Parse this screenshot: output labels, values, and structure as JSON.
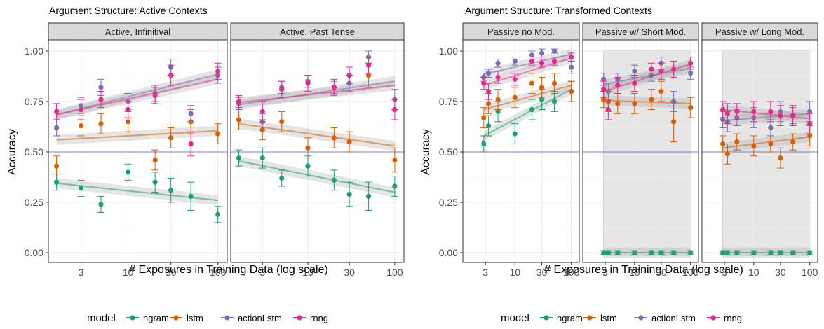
{
  "figure": {
    "left_title": "Argument Structure: Active Contexts",
    "right_title": "Argument Structure: Transformed Contexts",
    "ylabel": "Accuracy",
    "xlabel": "# Exposures in Training Data (log scale)",
    "legend_title": "model"
  },
  "colors": {
    "ngram": "#1b9e77",
    "lstm": "#d95f02",
    "actionLstm": "#7570b3",
    "rnng": "#e7298a",
    "ref_line": "#7b7fd6",
    "strip": "#d9d9d9"
  },
  "chart_data": [
    {
      "type": "scatter",
      "facet": "Active, Infinitival",
      "x_scale": "log",
      "ylim": [
        0,
        1
      ],
      "y_ticks": [
        "0.00",
        "0.25",
        "0.50",
        "0.75",
        "1.00"
      ],
      "x_ticks": [
        "3",
        "10",
        "30",
        "100"
      ],
      "reference_y": 0.5,
      "series": [
        {
          "name": "ngram",
          "x": [
            1.6,
            3,
            5,
            10,
            20,
            30,
            50,
            100
          ],
          "y": [
            0.35,
            0.32,
            0.24,
            0.4,
            0.35,
            0.31,
            0.28,
            0.19
          ],
          "err": [
            0.04,
            0.04,
            0.04,
            0.04,
            0.05,
            0.06,
            0.07,
            0.04
          ],
          "fit": [
            0.345,
            0.26
          ]
        },
        {
          "name": "lstm",
          "x": [
            1.6,
            3,
            5,
            10,
            20,
            30,
            50,
            100
          ],
          "y": [
            0.43,
            0.63,
            0.64,
            0.65,
            0.46,
            0.57,
            0.65,
            0.59
          ],
          "err": [
            0.05,
            0.05,
            0.05,
            0.05,
            0.05,
            0.05,
            0.06,
            0.05
          ],
          "fit": [
            0.56,
            0.605
          ]
        },
        {
          "name": "actionLstm",
          "x": [
            1.6,
            3,
            5,
            10,
            20,
            30,
            50,
            100
          ],
          "y": [
            0.62,
            0.73,
            0.82,
            0.75,
            0.79,
            0.92,
            0.69,
            0.88
          ],
          "err": [
            0.04,
            0.04,
            0.04,
            0.04,
            0.04,
            0.04,
            0.04,
            0.04
          ],
          "fit": [
            0.685,
            0.885
          ]
        },
        {
          "name": "rnng",
          "x": [
            1.6,
            3,
            5,
            10,
            20,
            30,
            50,
            100
          ],
          "y": [
            0.7,
            0.71,
            0.76,
            0.71,
            0.78,
            0.88,
            0.54,
            0.9
          ],
          "err": [
            0.04,
            0.05,
            0.04,
            0.04,
            0.04,
            0.05,
            0.06,
            0.04
          ],
          "fit": [
            0.685,
            0.86
          ]
        }
      ]
    },
    {
      "type": "scatter",
      "facet": "Active, Past Tense",
      "x_scale": "log",
      "ylim": [
        0,
        1
      ],
      "x_ticks": [
        "3",
        "10",
        "30",
        "100"
      ],
      "reference_y": 0.5,
      "series": [
        {
          "name": "ngram",
          "x": [
            1.6,
            3,
            5,
            10,
            20,
            30,
            50,
            100
          ],
          "y": [
            0.47,
            0.47,
            0.37,
            0.43,
            0.36,
            0.29,
            0.28,
            0.33
          ],
          "err": [
            0.04,
            0.05,
            0.04,
            0.05,
            0.05,
            0.06,
            0.07,
            0.05
          ],
          "fit": [
            0.455,
            0.3
          ]
        },
        {
          "name": "lstm",
          "x": [
            1.6,
            3,
            5,
            10,
            20,
            30,
            50,
            100
          ],
          "y": [
            0.66,
            0.61,
            0.65,
            0.52,
            0.57,
            0.55,
            0.88,
            0.46
          ],
          "err": [
            0.05,
            0.05,
            0.05,
            0.05,
            0.05,
            0.05,
            0.06,
            0.06
          ],
          "fit": [
            0.64,
            0.53
          ]
        },
        {
          "name": "actionLstm",
          "x": [
            1.6,
            3,
            5,
            10,
            20,
            30,
            50,
            100
          ],
          "y": [
            0.74,
            0.65,
            0.82,
            0.85,
            0.82,
            0.84,
            0.97,
            0.76
          ],
          "err": [
            0.03,
            0.04,
            0.03,
            0.03,
            0.03,
            0.04,
            0.03,
            0.05
          ],
          "fit": [
            0.735,
            0.85
          ]
        },
        {
          "name": "rnng",
          "x": [
            1.6,
            3,
            5,
            10,
            20,
            30,
            50,
            100
          ],
          "y": [
            0.75,
            0.7,
            0.81,
            0.84,
            0.82,
            0.88,
            0.93,
            0.71
          ],
          "err": [
            0.03,
            0.05,
            0.04,
            0.04,
            0.04,
            0.04,
            0.04,
            0.05
          ],
          "fit": [
            0.745,
            0.83
          ]
        }
      ]
    },
    {
      "type": "scatter",
      "facet": "Passive no Mod.",
      "x_scale": "log",
      "ylim": [
        0,
        1
      ],
      "y_ticks": [
        "0.00",
        "0.25",
        "0.50",
        "0.75",
        "1.00"
      ],
      "x_ticks": [
        "3",
        "10",
        "30",
        "100"
      ],
      "reference_y": 0.5,
      "series": [
        {
          "name": "ngram",
          "x": [
            2.8,
            3.4,
            5,
            10,
            20,
            30,
            50,
            100
          ],
          "y": [
            0.54,
            0.63,
            0.7,
            0.59,
            0.71,
            0.76,
            0.75,
            0.8
          ],
          "err": [
            0.04,
            0.05,
            0.05,
            0.05,
            0.05,
            0.05,
            0.05,
            0.05
          ],
          "fit": [
            0.58,
            0.81
          ]
        },
        {
          "name": "lstm",
          "x": [
            2.8,
            3.4,
            5,
            10,
            20,
            30,
            50,
            100
          ],
          "y": [
            0.67,
            0.74,
            0.76,
            0.77,
            0.84,
            0.82,
            0.84,
            0.8
          ],
          "err": [
            0.05,
            0.05,
            0.05,
            0.05,
            0.05,
            0.05,
            0.05,
            0.05
          ],
          "fit": [
            0.71,
            0.83
          ]
        },
        {
          "name": "actionLstm",
          "x": [
            2.8,
            3.4,
            5,
            10,
            20,
            30,
            50,
            100
          ],
          "y": [
            0.87,
            0.89,
            0.94,
            0.95,
            0.98,
            0.99,
            1.0,
            0.92
          ],
          "err": [
            0.02,
            0.02,
            0.02,
            0.02,
            0.02,
            0.02,
            0.01,
            0.03
          ],
          "fit": [
            0.885,
            0.985
          ]
        },
        {
          "name": "rnng",
          "x": [
            2.8,
            3.4,
            5,
            10,
            20,
            30,
            50,
            100
          ],
          "y": [
            0.84,
            0.8,
            0.87,
            0.86,
            0.95,
            0.94,
            0.95,
            0.97
          ],
          "err": [
            0.03,
            0.04,
            0.03,
            0.03,
            0.02,
            0.02,
            0.02,
            0.02
          ],
          "fit": [
            0.83,
            0.965
          ]
        }
      ]
    },
    {
      "type": "scatter",
      "facet": "Passive w/ Short Mod.",
      "x_scale": "log",
      "ylim": [
        0,
        1
      ],
      "x_ticks": [
        "3",
        "10",
        "30",
        "100"
      ],
      "reference_y": 0.5,
      "shaded": true,
      "series": [
        {
          "name": "ngram",
          "x": [
            2.8,
            3.4,
            5,
            10,
            20,
            30,
            50,
            100
          ],
          "y": [
            0,
            0,
            0,
            0,
            0,
            0,
            0,
            0
          ],
          "err": [
            0.01,
            0.01,
            0.01,
            0.01,
            0.01,
            0.01,
            0.01,
            0.01
          ],
          "fit": [
            0,
            0
          ]
        },
        {
          "name": "lstm",
          "x": [
            2.8,
            3.4,
            5,
            10,
            20,
            30,
            50,
            100
          ],
          "y": [
            0.76,
            0.75,
            0.74,
            0.74,
            0.76,
            0.8,
            0.65,
            0.72
          ],
          "err": [
            0.04,
            0.05,
            0.05,
            0.05,
            0.05,
            0.05,
            0.1,
            0.05
          ],
          "fit": [
            0.755,
            0.74
          ]
        },
        {
          "name": "actionLstm",
          "x": [
            2.8,
            3.4,
            5,
            10,
            20,
            30,
            50,
            100
          ],
          "y": [
            0.86,
            0.8,
            0.86,
            0.9,
            0.88,
            0.94,
            0.75,
            0.89
          ],
          "err": [
            0.03,
            0.04,
            0.03,
            0.03,
            0.03,
            0.03,
            0.05,
            0.03
          ],
          "fit": [
            0.835,
            0.915
          ]
        },
        {
          "name": "rnng",
          "x": [
            2.8,
            3.4,
            5,
            10,
            20,
            30,
            50,
            100
          ],
          "y": [
            0.81,
            0.71,
            0.83,
            0.84,
            0.91,
            0.9,
            0.91,
            0.94
          ],
          "err": [
            0.04,
            0.05,
            0.04,
            0.04,
            0.03,
            0.04,
            0.04,
            0.03
          ],
          "fit": [
            0.8,
            0.935
          ]
        }
      ]
    },
    {
      "type": "scatter",
      "facet": "Passive w/ Long Mod.",
      "x_scale": "log",
      "ylim": [
        0,
        1
      ],
      "x_ticks": [
        "3",
        "10",
        "30",
        "100"
      ],
      "reference_y": 0.5,
      "shaded": true,
      "series": [
        {
          "name": "ngram",
          "x": [
            2.8,
            3.4,
            5,
            10,
            20,
            30,
            50,
            100
          ],
          "y": [
            0,
            0,
            0,
            0,
            0,
            0,
            0,
            0
          ],
          "err": [
            0.01,
            0.01,
            0.01,
            0.01,
            0.01,
            0.01,
            0.01,
            0.01
          ],
          "fit": [
            0,
            0
          ]
        },
        {
          "name": "lstm",
          "x": [
            2.8,
            3.4,
            5,
            10,
            20,
            30,
            50,
            100
          ],
          "y": [
            0.54,
            0.49,
            0.55,
            0.53,
            0.54,
            0.47,
            0.55,
            0.58
          ],
          "err": [
            0.04,
            0.05,
            0.04,
            0.05,
            0.04,
            0.05,
            0.04,
            0.05
          ],
          "fit": [
            0.52,
            0.575
          ]
        },
        {
          "name": "actionLstm",
          "x": [
            2.8,
            3.4,
            5,
            10,
            20,
            30,
            50,
            100
          ],
          "y": [
            0.66,
            0.65,
            0.67,
            0.67,
            0.62,
            0.7,
            0.68,
            0.7
          ],
          "err": [
            0.04,
            0.05,
            0.04,
            0.05,
            0.04,
            0.05,
            0.04,
            0.05
          ],
          "fit": [
            0.655,
            0.69
          ]
        },
        {
          "name": "rnng",
          "x": [
            2.8,
            3.4,
            5,
            10,
            20,
            30,
            50,
            100
          ],
          "y": [
            0.71,
            0.69,
            0.7,
            0.7,
            0.7,
            0.68,
            0.68,
            0.64
          ],
          "err": [
            0.04,
            0.05,
            0.04,
            0.05,
            0.05,
            0.05,
            0.05,
            0.05
          ],
          "fit": [
            0.71,
            0.665
          ]
        }
      ]
    }
  ]
}
